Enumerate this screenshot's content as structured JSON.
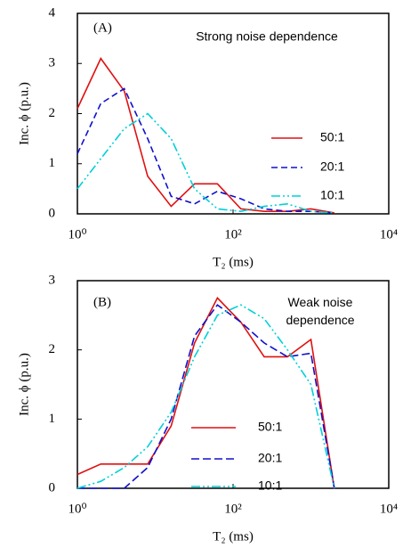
{
  "chart_data": [
    {
      "type": "line",
      "annotation": "(A)",
      "title": "Strong noise dependence",
      "xlabel": "T₂ (ms)",
      "ylabel": "Inc. ϕ (p.u.)",
      "xscale": "log",
      "xlim": [
        1,
        10000
      ],
      "xticks": [
        {
          "value": 1,
          "label": "10⁰"
        },
        {
          "value": 100,
          "label": "10²"
        },
        {
          "value": 10000,
          "label": "10⁴"
        }
      ],
      "ylim": [
        0,
        4
      ],
      "yticks": [
        0,
        1,
        2,
        3,
        4
      ],
      "x": [
        1,
        2,
        4,
        8,
        16,
        32,
        63,
        126,
        251,
        501,
        1000,
        2000
      ],
      "series": [
        {
          "name": "50:1",
          "color": "#e01010",
          "dash": "none",
          "values": [
            2.1,
            3.1,
            2.45,
            0.75,
            0.15,
            0.6,
            0.6,
            0.1,
            0.05,
            0.05,
            0.1,
            0.02
          ]
        },
        {
          "name": "20:1",
          "color": "#1010cc",
          "dash": "7,4",
          "values": [
            1.2,
            2.2,
            2.5,
            1.5,
            0.35,
            0.2,
            0.45,
            0.3,
            0.1,
            0.05,
            0.05,
            0.02
          ]
        },
        {
          "name": "10:1",
          "color": "#00d0d8",
          "dash": "10,3,2,3,2,3",
          "values": [
            0.5,
            1.1,
            1.7,
            2.0,
            1.5,
            0.5,
            0.1,
            0.05,
            0.15,
            0.2,
            0.05,
            0.02
          ]
        }
      ]
    },
    {
      "type": "line",
      "annotation": "(B)",
      "title": [
        "Weak noise",
        "dependence"
      ],
      "xlabel": "T₂ (ms)",
      "ylabel": "Inc. ϕ (p.u.)",
      "xscale": "log",
      "xlim": [
        1,
        10000
      ],
      "xticks": [
        {
          "value": 1,
          "label": "10⁰"
        },
        {
          "value": 100,
          "label": "10²"
        },
        {
          "value": 10000,
          "label": "10⁴"
        }
      ],
      "ylim": [
        0,
        3
      ],
      "yticks": [
        0,
        1,
        2,
        3
      ],
      "x": [
        1,
        2,
        4,
        8,
        16,
        32,
        63,
        126,
        251,
        501,
        1000,
        2000
      ],
      "series": [
        {
          "name": "50:1",
          "color": "#e01010",
          "dash": "none",
          "values": [
            0.2,
            0.35,
            0.35,
            0.35,
            0.9,
            2.1,
            2.75,
            2.4,
            1.9,
            1.9,
            2.15,
            0
          ]
        },
        {
          "name": "20:1",
          "color": "#1010cc",
          "dash": "9,4",
          "values": [
            0,
            0,
            0,
            0.3,
            1.0,
            2.2,
            2.65,
            2.4,
            2.1,
            1.9,
            1.95,
            0
          ]
        },
        {
          "name": "10:1",
          "color": "#00d0d8",
          "dash": "10,3,2,3,2,3",
          "values": [
            0,
            0.1,
            0.3,
            0.6,
            1.1,
            1.9,
            2.5,
            2.65,
            2.45,
            2.0,
            1.5,
            0
          ]
        }
      ]
    }
  ]
}
